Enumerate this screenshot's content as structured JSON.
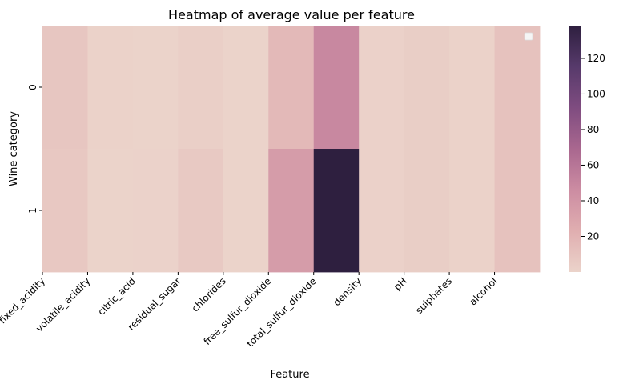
{
  "chart_data": {
    "type": "heatmap",
    "title": "Heatmap of average value per feature",
    "xlabel": "Feature",
    "ylabel": "Wine category",
    "x_categories": [
      "fixed_acidity",
      "volatile_acidity",
      "citric_acid",
      "residual_sugar",
      "chlorides",
      "free_sulfur_dioxide",
      "total_sulfur_dioxide",
      "density",
      "pH",
      "sulphates",
      "alcohol"
    ],
    "y_categories": [
      "0",
      "1"
    ],
    "values": [
      [
        8.3,
        0.5,
        0.3,
        2.5,
        0.09,
        15.9,
        48.5,
        1.0,
        3.3,
        0.66,
        10.4
      ],
      [
        7.0,
        0.28,
        0.33,
        6.4,
        0.05,
        35.3,
        138.4,
        0.99,
        3.19,
        0.49,
        10.5
      ]
    ],
    "colorbar": {
      "min": 0,
      "max": 138.4,
      "ticks": [
        20,
        40,
        60,
        80,
        100,
        120
      ],
      "colors": [
        "#ebd3ca",
        "#e0aeb0",
        "#cc8ca2",
        "#a9678f",
        "#7f4c80",
        "#573a6b",
        "#2e1f3f"
      ]
    },
    "legend": {
      "visible": true,
      "position": "upper-right",
      "entries": []
    }
  }
}
